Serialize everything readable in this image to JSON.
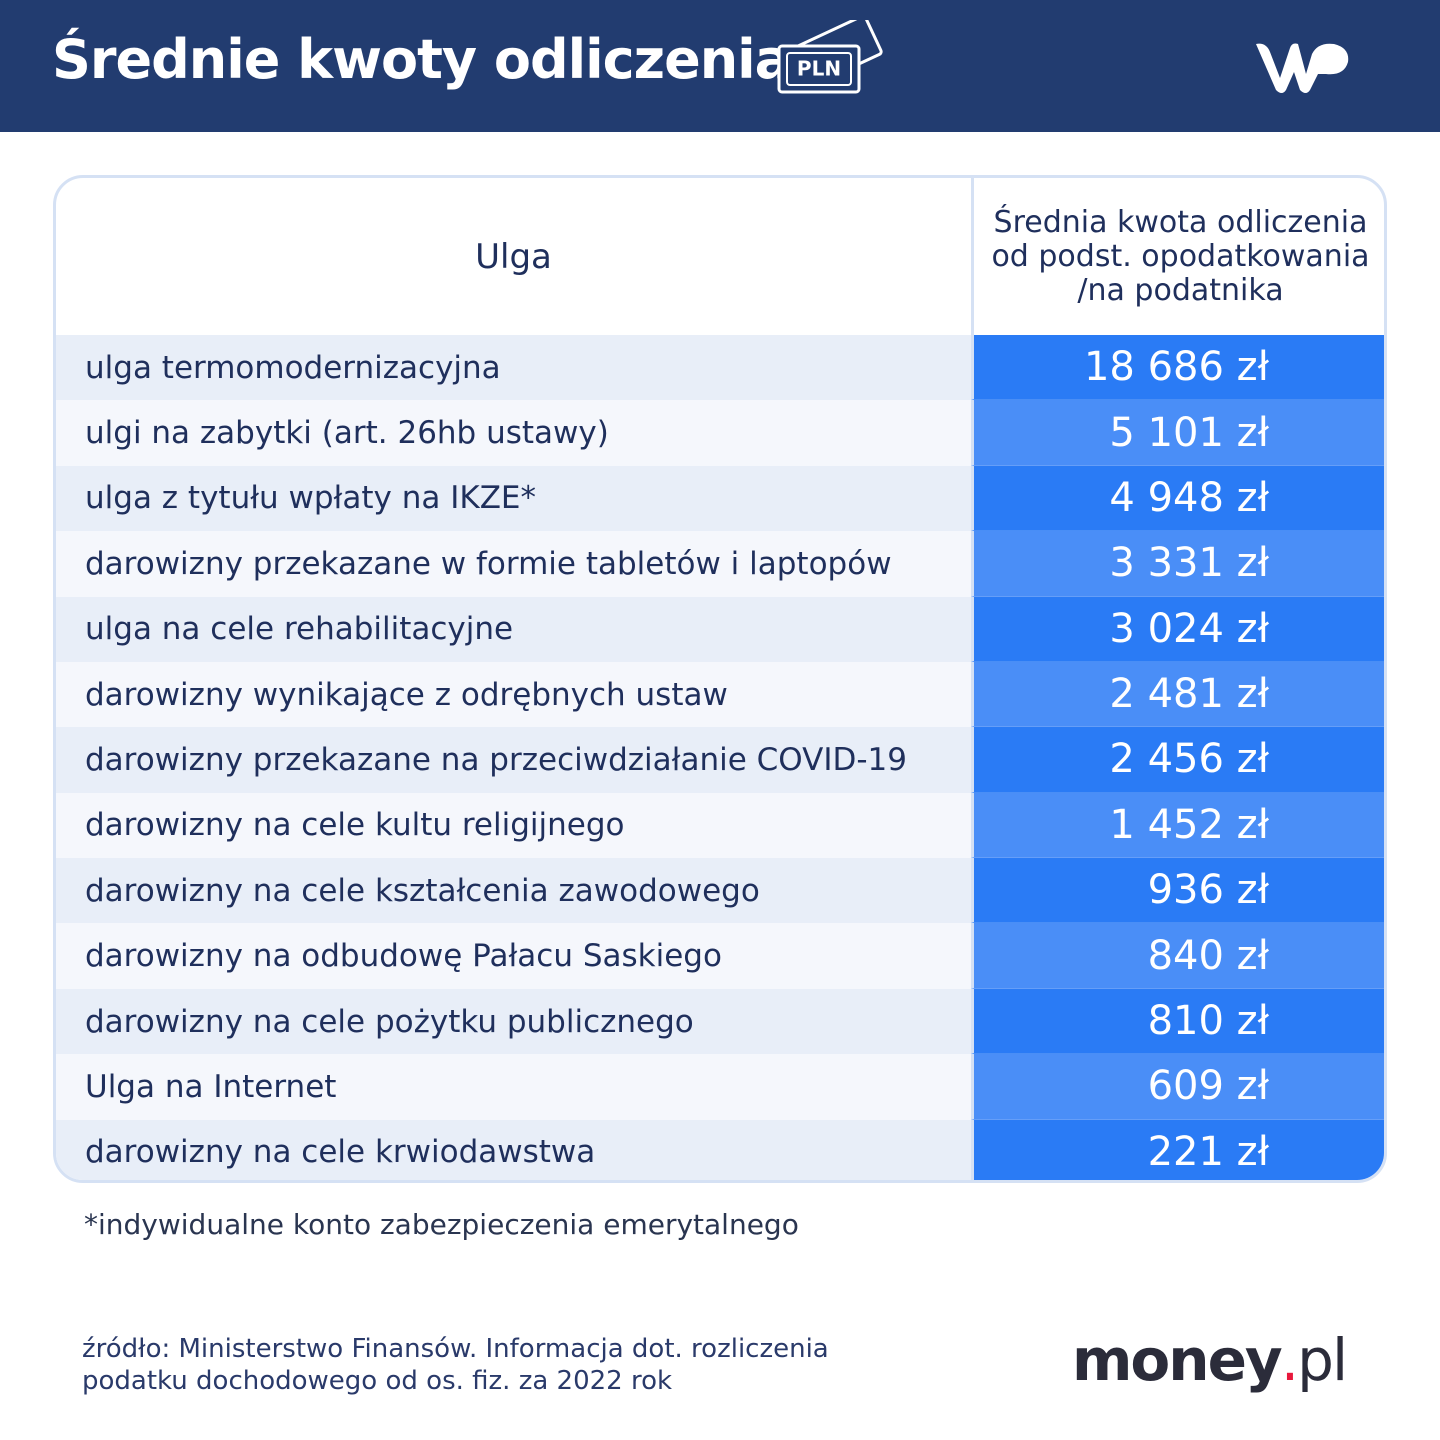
{
  "header": {
    "title": "Średnie kwoty odliczenia",
    "icon_text": "PLN"
  },
  "table": {
    "headers": [
      "Ulga",
      [
        "Średnia kwota odliczenia",
        "od podst. opodatkowania",
        "/na podatnika"
      ]
    ],
    "rows": [
      [
        "ulga termomodernizacyjna",
        "18 686 zł"
      ],
      [
        "ulgi na zabytki (art. 26hb ustawy)",
        "5 101 zł"
      ],
      [
        "ulga z tytułu wpłaty na IKZE*",
        "4 948 zł"
      ],
      [
        "darowizny przekazane w formie tabletów i laptopów",
        "3 331 zł"
      ],
      [
        "ulga na cele rehabilitacyjne",
        "3 024 zł"
      ],
      [
        "darowizny wynikające z odrębnych ustaw",
        "2 481 zł"
      ],
      [
        "darowizny przekazane na przeciwdziałanie COVID-19",
        "2 456 zł"
      ],
      [
        "darowizny na cele kultu religijnego",
        "1 452 zł"
      ],
      [
        "darowizny na cele kształcenia zawodowego",
        "936 zł"
      ],
      [
        "darowizny na odbudowę Pałacu Saskiego",
        "840 zł"
      ],
      [
        "darowizny na cele pożytku publicznego",
        "810 zł"
      ],
      [
        "Ulga na Internet",
        "609 zł"
      ],
      [
        "darowizny na cele krwiodawstwa",
        "221 zł"
      ]
    ]
  },
  "footnote": "*indywidualne konto zabezpieczenia emerytalnego",
  "source": [
    "źródło: Ministerstwo Finansów. Informacja dot. rozliczenia",
    "podatku dochodowego od os. fiz. za 2022 rok"
  ],
  "logo": {
    "name": "money",
    "suffix": ".pl"
  }
}
